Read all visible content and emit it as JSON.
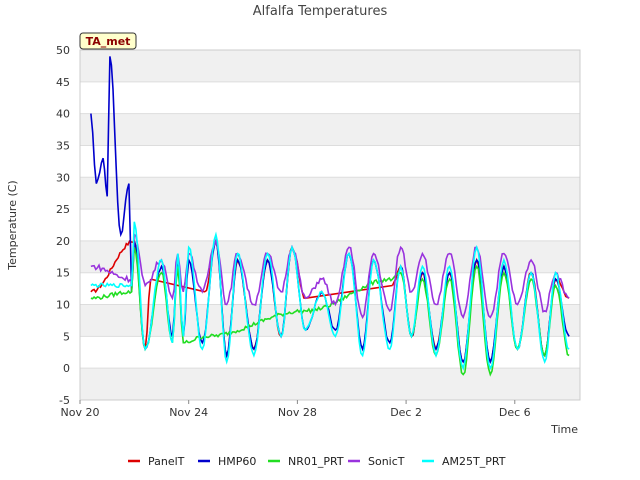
{
  "chart_data": {
    "type": "line",
    "title": "Alfalfa Temperatures",
    "xlabel": "Time",
    "ylabel": "Temperature (C)",
    "ylim": [
      -5,
      50
    ],
    "xlim_days": [
      0,
      18.4
    ],
    "yticks": [
      -5,
      0,
      5,
      10,
      15,
      20,
      25,
      30,
      35,
      40,
      45,
      50
    ],
    "xticks": [
      {
        "day": 0,
        "label": "Nov 20"
      },
      {
        "day": 4,
        "label": "Nov 24"
      },
      {
        "day": 8,
        "label": "Nov 28"
      },
      {
        "day": 12,
        "label": "Dec 2"
      },
      {
        "day": 16,
        "label": "Dec 6"
      }
    ],
    "grid": true,
    "banded_background": true,
    "legend_position": "bottom",
    "site_tag": "TA_met",
    "x_units": "days since Nov 20",
    "series": [
      {
        "name": "PanelT",
        "color": "#dd0000",
        "gaps": [
          [
            2.6,
            4.6
          ],
          [
            8.3,
            11.5
          ]
        ],
        "anchors": [
          [
            0.4,
            12
          ],
          [
            2.6,
            14
          ],
          [
            4.6,
            12
          ],
          [
            8.3,
            11
          ],
          [
            11.5,
            13
          ],
          [
            18,
            11
          ]
        ],
        "peaks": [
          [
            2.0,
            20
          ],
          [
            3.0,
            16
          ],
          [
            3.6,
            17
          ],
          [
            4.0,
            17
          ],
          [
            5.0,
            20
          ],
          [
            5.8,
            17
          ],
          [
            6.9,
            17
          ],
          [
            7.8,
            19
          ],
          [
            8.9,
            12
          ],
          [
            9.9,
            18
          ],
          [
            10.8,
            17
          ],
          [
            11.8,
            16
          ],
          [
            12.6,
            15
          ],
          [
            13.6,
            15
          ],
          [
            14.6,
            17
          ],
          [
            15.6,
            16
          ],
          [
            16.6,
            15
          ],
          [
            17.5,
            14
          ]
        ],
        "troughs": [
          [
            2.4,
            3
          ],
          [
            3.4,
            4
          ],
          [
            3.8,
            5
          ],
          [
            4.5,
            3
          ],
          [
            5.4,
            2
          ],
          [
            6.4,
            3
          ],
          [
            7.4,
            5
          ],
          [
            8.3,
            6
          ],
          [
            9.4,
            6
          ],
          [
            10.4,
            3
          ],
          [
            11.4,
            4
          ],
          [
            12.2,
            5
          ],
          [
            13.1,
            3
          ],
          [
            14.1,
            1
          ],
          [
            15.1,
            1
          ],
          [
            16.1,
            3
          ],
          [
            17.1,
            2
          ],
          [
            18.0,
            3
          ]
        ]
      },
      {
        "name": "HMP60",
        "color": "#0000cc",
        "gaps": [],
        "spikes": [
          [
            0.4,
            40
          ],
          [
            0.6,
            29
          ],
          [
            0.85,
            33
          ],
          [
            1.0,
            27
          ],
          [
            1.1,
            49
          ],
          [
            1.5,
            21
          ],
          [
            1.8,
            29
          ]
        ],
        "anchors": [
          [
            0.4,
            13
          ],
          [
            1.9,
            12
          ],
          [
            18,
            5
          ]
        ],
        "peaks": [
          [
            2.0,
            20
          ],
          [
            3.0,
            16
          ],
          [
            3.6,
            17
          ],
          [
            4.0,
            17
          ],
          [
            5.0,
            20
          ],
          [
            5.8,
            17
          ],
          [
            6.9,
            17
          ],
          [
            7.8,
            19
          ],
          [
            8.9,
            12
          ],
          [
            9.9,
            18
          ],
          [
            10.8,
            17
          ],
          [
            11.8,
            16
          ],
          [
            12.6,
            15
          ],
          [
            13.6,
            15
          ],
          [
            14.6,
            17
          ],
          [
            15.6,
            16
          ],
          [
            16.6,
            15
          ],
          [
            17.5,
            14
          ]
        ],
        "troughs": [
          [
            2.4,
            3
          ],
          [
            3.4,
            5
          ],
          [
            3.8,
            5
          ],
          [
            4.5,
            4
          ],
          [
            5.4,
            2
          ],
          [
            6.4,
            3
          ],
          [
            7.4,
            5
          ],
          [
            8.3,
            6
          ],
          [
            9.4,
            6
          ],
          [
            10.4,
            3
          ],
          [
            11.4,
            4
          ],
          [
            12.2,
            5
          ],
          [
            13.1,
            3
          ],
          [
            14.1,
            1
          ],
          [
            15.1,
            1
          ],
          [
            16.1,
            3
          ],
          [
            17.1,
            2
          ],
          [
            18.0,
            4
          ]
        ]
      },
      {
        "name": "NR01_PRT",
        "color": "#22dd22",
        "gaps": [],
        "anchors": [
          [
            0.4,
            11
          ],
          [
            1.9,
            12
          ],
          [
            4.6,
            5
          ],
          [
            8.3,
            9
          ],
          [
            11.5,
            14
          ],
          [
            18,
            2
          ]
        ],
        "peaks": [
          [
            2.0,
            19
          ],
          [
            3.0,
            15
          ],
          [
            3.6,
            16
          ],
          [
            11.8,
            15
          ],
          [
            12.6,
            14
          ],
          [
            13.6,
            14
          ],
          [
            14.6,
            16
          ],
          [
            15.6,
            15
          ],
          [
            16.6,
            14
          ],
          [
            17.5,
            13
          ]
        ],
        "troughs": [
          [
            2.4,
            3
          ],
          [
            3.4,
            4
          ],
          [
            3.8,
            4
          ],
          [
            12.2,
            5
          ],
          [
            13.1,
            2
          ],
          [
            14.1,
            -1
          ],
          [
            15.1,
            -1
          ],
          [
            16.1,
            3
          ],
          [
            17.1,
            2
          ],
          [
            18.0,
            2
          ]
        ]
      },
      {
        "name": "SonicT",
        "color": "#9933dd",
        "gaps": [],
        "anchors": [
          [
            0.4,
            16
          ],
          [
            1.9,
            14
          ],
          [
            18,
            11
          ]
        ],
        "peaks": [
          [
            2.0,
            21
          ],
          [
            3.0,
            17
          ],
          [
            3.6,
            18
          ],
          [
            4.0,
            18
          ],
          [
            5.0,
            20
          ],
          [
            5.8,
            18
          ],
          [
            6.9,
            18
          ],
          [
            7.8,
            19
          ],
          [
            8.9,
            14
          ],
          [
            9.9,
            19
          ],
          [
            10.8,
            18
          ],
          [
            11.8,
            19
          ],
          [
            12.6,
            18
          ],
          [
            13.6,
            18
          ],
          [
            14.6,
            19
          ],
          [
            15.6,
            18
          ],
          [
            16.6,
            17
          ],
          [
            17.5,
            15
          ]
        ],
        "troughs": [
          [
            2.4,
            13
          ],
          [
            3.4,
            11
          ],
          [
            3.8,
            12
          ],
          [
            4.5,
            12
          ],
          [
            5.4,
            10
          ],
          [
            6.4,
            10
          ],
          [
            7.4,
            12
          ],
          [
            8.3,
            11
          ],
          [
            9.4,
            10
          ],
          [
            10.4,
            8
          ],
          [
            11.4,
            9
          ],
          [
            12.2,
            12
          ],
          [
            13.1,
            10
          ],
          [
            14.1,
            8
          ],
          [
            15.1,
            8
          ],
          [
            16.1,
            10
          ],
          [
            17.1,
            9
          ],
          [
            18.0,
            12
          ]
        ]
      },
      {
        "name": "AM25T_PRT",
        "color": "#00ffff",
        "gaps": [],
        "anchors": [
          [
            0.4,
            13
          ],
          [
            1.9,
            13
          ],
          [
            18,
            3
          ]
        ],
        "peaks": [
          [
            2.0,
            23
          ],
          [
            3.0,
            17
          ],
          [
            3.6,
            18
          ],
          [
            4.0,
            19
          ],
          [
            5.0,
            21
          ],
          [
            5.8,
            18
          ],
          [
            6.9,
            18
          ],
          [
            7.8,
            19
          ],
          [
            8.9,
            12
          ],
          [
            9.9,
            18
          ],
          [
            10.8,
            17
          ],
          [
            11.8,
            16
          ],
          [
            12.6,
            16
          ],
          [
            13.6,
            16
          ],
          [
            14.6,
            19
          ],
          [
            15.6,
            17
          ],
          [
            16.6,
            15
          ],
          [
            17.5,
            15
          ]
        ],
        "troughs": [
          [
            2.4,
            3
          ],
          [
            3.4,
            4
          ],
          [
            3.8,
            5
          ],
          [
            4.5,
            3
          ],
          [
            5.4,
            1
          ],
          [
            6.4,
            2
          ],
          [
            7.4,
            5
          ],
          [
            8.3,
            6
          ],
          [
            9.4,
            5
          ],
          [
            10.4,
            2
          ],
          [
            11.4,
            3
          ],
          [
            12.2,
            5
          ],
          [
            13.1,
            2
          ],
          [
            14.1,
            0
          ],
          [
            15.1,
            0
          ],
          [
            16.1,
            3
          ],
          [
            17.1,
            1
          ],
          [
            18.0,
            2
          ]
        ]
      }
    ]
  }
}
